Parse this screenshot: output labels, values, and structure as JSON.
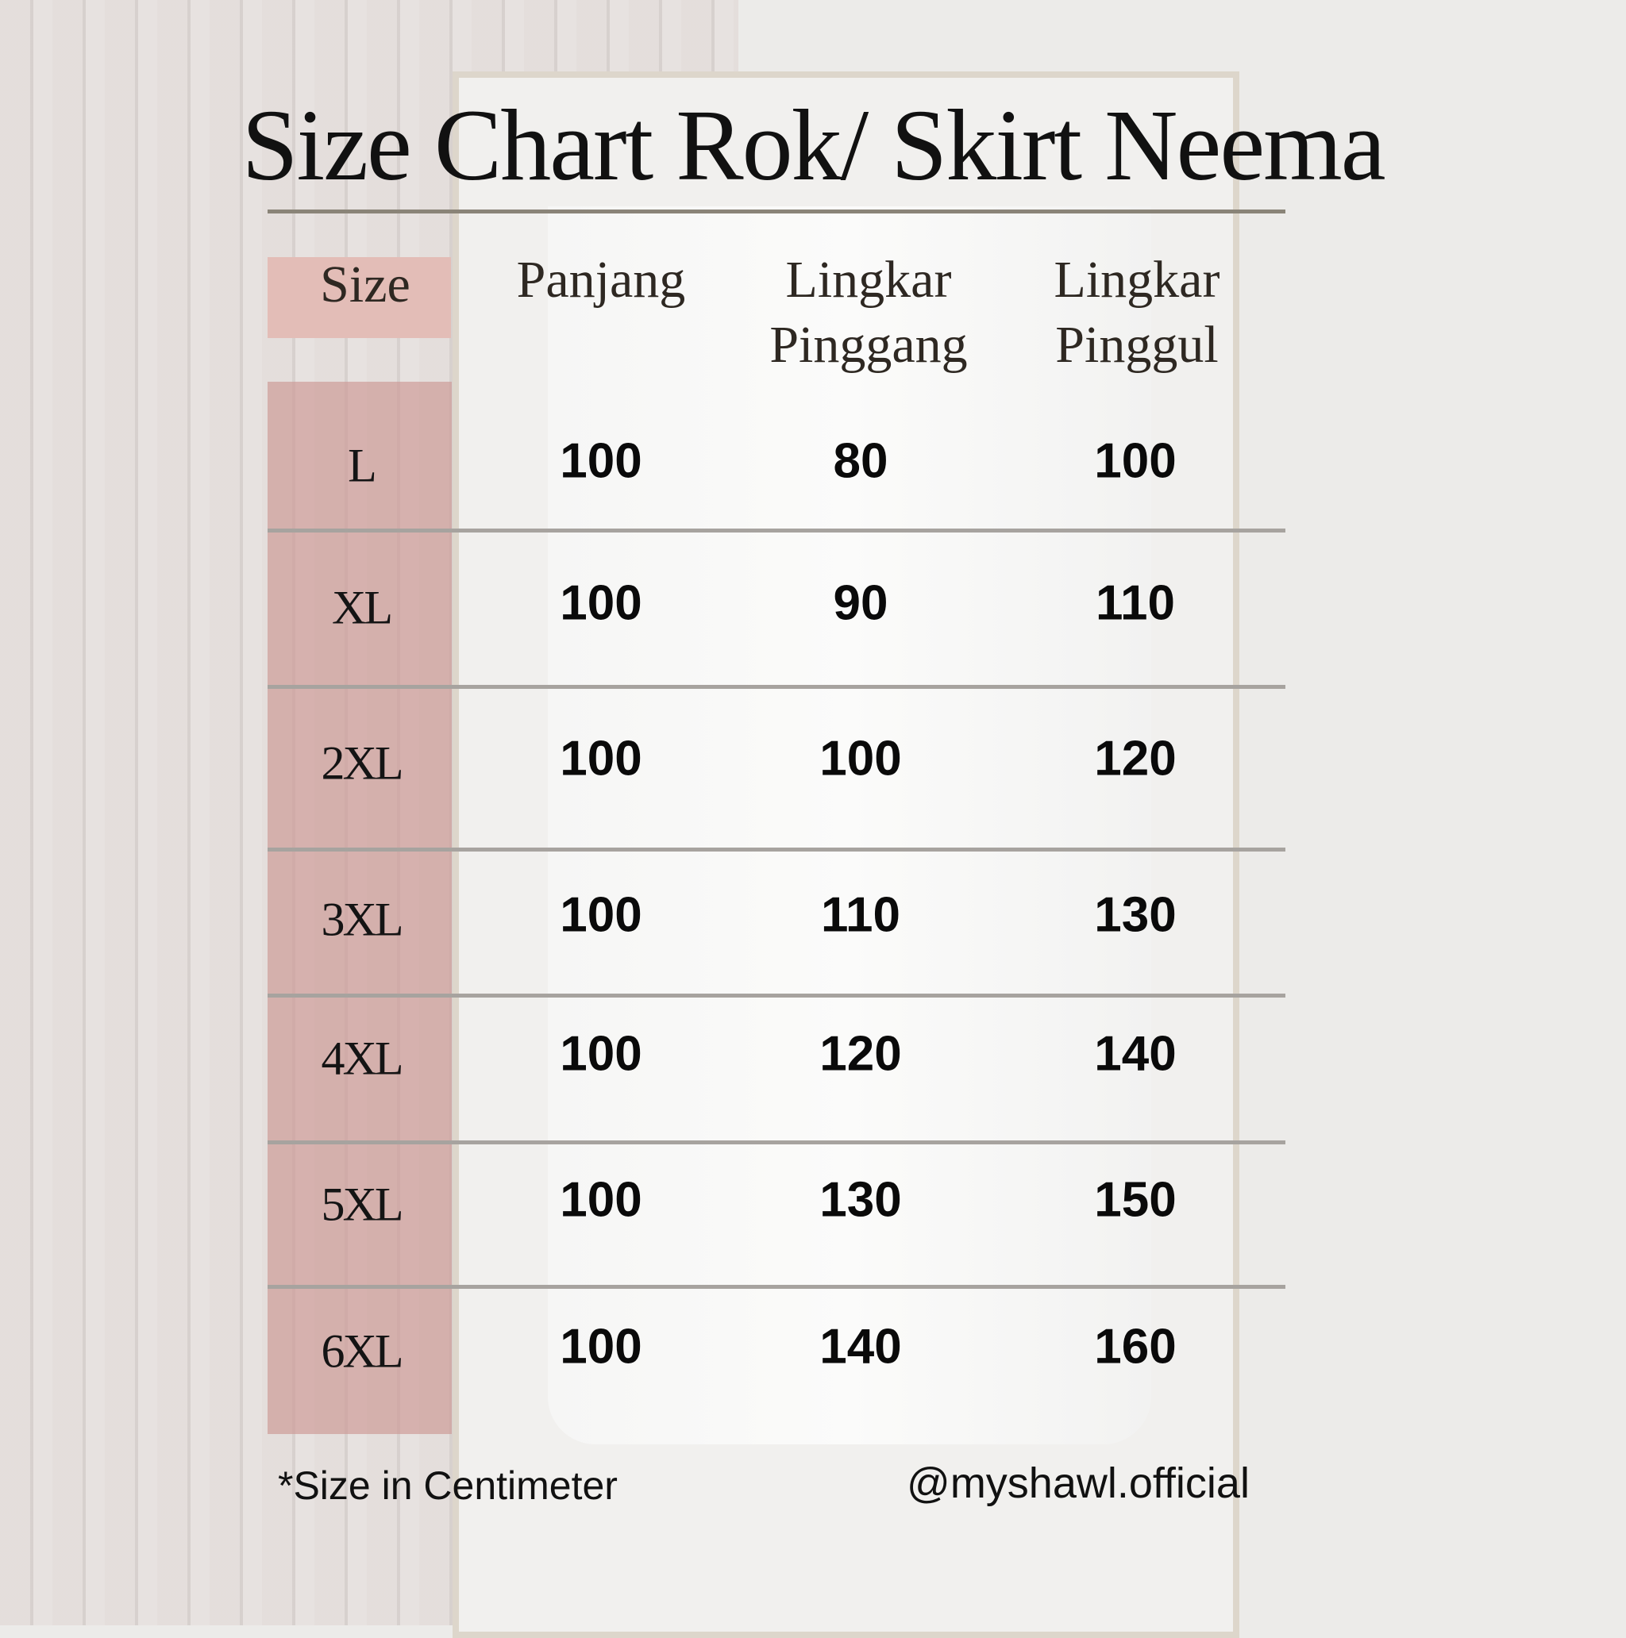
{
  "title": "Size Chart Rok/ Skirt Neema",
  "headers": {
    "size": "Size",
    "panjang": "Panjang",
    "pinggang_1": "Lingkar",
    "pinggang_2": "Pinggang",
    "pinggul_1": "Lingkar",
    "pinggul_2": "Pinggul"
  },
  "rows": [
    {
      "size": "L",
      "panjang": "100",
      "pinggang": "80",
      "pinggul": "100"
    },
    {
      "size": "XL",
      "panjang": "100",
      "pinggang": "90",
      "pinggul": "110"
    },
    {
      "size": "2XL",
      "panjang": "100",
      "pinggang": "100",
      "pinggul": "120"
    },
    {
      "size": "3XL",
      "panjang": "100",
      "pinggang": "110",
      "pinggul": "130"
    },
    {
      "size": "4XL",
      "panjang": "100",
      "pinggang": "120",
      "pinggul": "140"
    },
    {
      "size": "5XL",
      "panjang": "100",
      "pinggang": "130",
      "pinggul": "150"
    },
    {
      "size": "6XL",
      "panjang": "100",
      "pinggang": "140",
      "pinggul": "160"
    }
  ],
  "footer": {
    "note": "*Size in Centimeter",
    "handle": "@myshawl.official"
  },
  "colors": {
    "size_header_bg": "#e3bdb7",
    "size_column_bg": "#d4a9a7",
    "rule": "#a7a39f"
  }
}
